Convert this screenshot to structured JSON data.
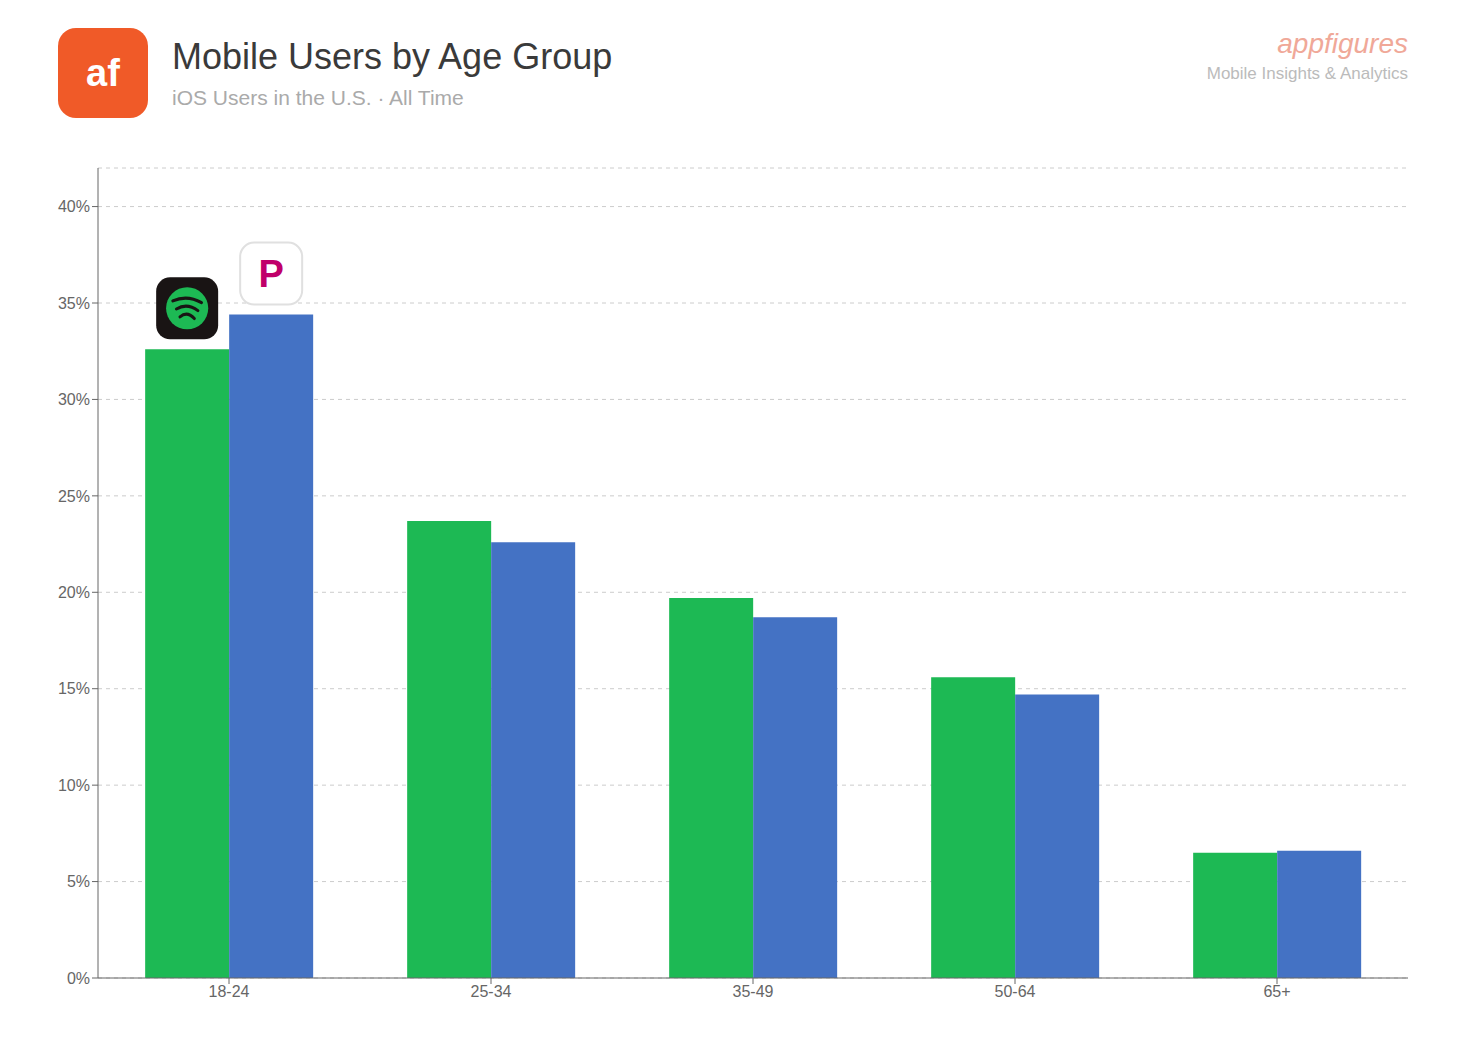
{
  "chart_data": {
    "type": "bar",
    "title": "Mobile Users by Age Group",
    "subtitle": "iOS Users in the U.S. · All Time",
    "annotations": [
      "af",
      "appfigures",
      "Mobile Insights & Analytics",
      "P"
    ],
    "categories": [
      "18-24",
      "25-34",
      "35-49",
      "50-64",
      "65+"
    ],
    "series": [
      {
        "color": "#1DB954",
        "values": [
          0.326,
          0.237,
          0.197,
          0.156,
          0.065
        ]
      },
      {
        "color": "#4472C4",
        "values": [
          0.344,
          0.226,
          0.187,
          0.147,
          0.066
        ]
      }
    ],
    "ylim": [
      0,
      0.42
    ],
    "yticks": [
      {
        "value": 0.0,
        "label": "0%"
      },
      {
        "value": 0.05,
        "label": "5%"
      },
      {
        "value": 0.1,
        "label": "10%"
      },
      {
        "value": 0.15,
        "label": "15%"
      },
      {
        "value": 0.2,
        "label": "20%"
      },
      {
        "value": 0.25,
        "label": "25%"
      },
      {
        "value": 0.3,
        "label": "30%"
      },
      {
        "value": 0.35,
        "label": "35%"
      },
      {
        "value": 0.4,
        "label": "40%"
      }
    ],
    "grid": true
  }
}
